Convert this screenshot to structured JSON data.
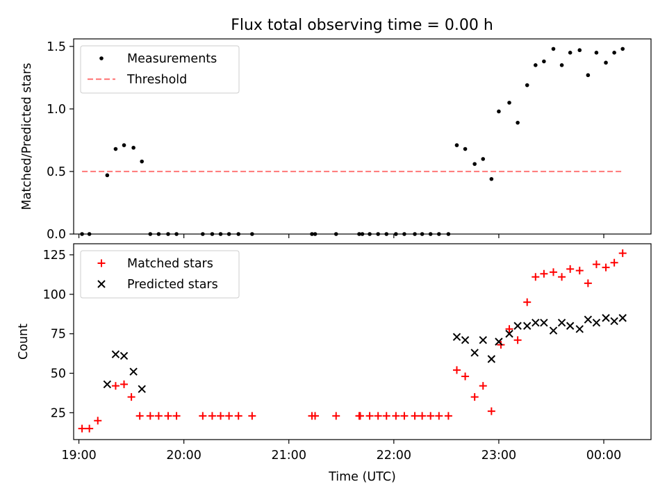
{
  "title": "Flux total observing time = 0.00 h",
  "chart_data": [
    {
      "type": "scatter",
      "ylabel": "Matched/Predicted stars",
      "xlim_hours": [
        18.95,
        24.45
      ],
      "ylim": [
        0,
        1.56
      ],
      "yticks": [
        0.0,
        0.5,
        1.0,
        1.5
      ],
      "ytick_labels": [
        "0.0",
        "0.5",
        "1.0",
        "1.5"
      ],
      "legend_position": "upper-left",
      "series": [
        {
          "name": "Measurements",
          "marker": "dot",
          "color": "#000000",
          "points": [
            [
              19.03,
              0.0
            ],
            [
              19.1,
              0.0
            ],
            [
              19.27,
              0.47
            ],
            [
              19.35,
              0.68
            ],
            [
              19.43,
              0.71
            ],
            [
              19.52,
              0.69
            ],
            [
              19.6,
              0.58
            ],
            [
              19.68,
              0.0
            ],
            [
              19.76,
              0.0
            ],
            [
              19.85,
              0.0
            ],
            [
              19.93,
              0.0
            ],
            [
              20.18,
              0.0
            ],
            [
              20.27,
              0.0
            ],
            [
              20.35,
              0.0
            ],
            [
              20.43,
              0.0
            ],
            [
              20.52,
              0.0
            ],
            [
              20.65,
              0.0
            ],
            [
              21.22,
              0.0
            ],
            [
              21.25,
              0.0
            ],
            [
              21.45,
              0.0
            ],
            [
              21.67,
              0.0
            ],
            [
              21.7,
              0.0
            ],
            [
              21.77,
              0.0
            ],
            [
              21.85,
              0.0
            ],
            [
              21.93,
              0.0
            ],
            [
              22.02,
              0.0
            ],
            [
              22.1,
              0.0
            ],
            [
              22.2,
              0.0
            ],
            [
              22.27,
              0.0
            ],
            [
              22.35,
              0.0
            ],
            [
              22.43,
              0.0
            ],
            [
              22.52,
              0.0
            ],
            [
              22.6,
              0.71
            ],
            [
              22.68,
              0.68
            ],
            [
              22.77,
              0.56
            ],
            [
              22.85,
              0.6
            ],
            [
              22.93,
              0.44
            ],
            [
              23.0,
              0.98
            ],
            [
              23.1,
              1.05
            ],
            [
              23.18,
              0.89
            ],
            [
              23.27,
              1.19
            ],
            [
              23.35,
              1.35
            ],
            [
              23.43,
              1.38
            ],
            [
              23.52,
              1.48
            ],
            [
              23.6,
              1.35
            ],
            [
              23.68,
              1.45
            ],
            [
              23.77,
              1.47
            ],
            [
              23.85,
              1.27
            ],
            [
              23.93,
              1.45
            ],
            [
              24.02,
              1.37
            ],
            [
              24.1,
              1.45
            ],
            [
              24.18,
              1.48
            ]
          ]
        },
        {
          "name": "Threshold",
          "style": "dashed",
          "color": "#ff7f7f",
          "x": [
            19.03,
            24.18
          ],
          "y": [
            0.5,
            0.5
          ]
        }
      ]
    },
    {
      "type": "scatter",
      "xlabel": "Time (UTC)",
      "ylabel": "Count",
      "xlim_hours": [
        18.95,
        24.45
      ],
      "ylim": [
        8,
        132
      ],
      "yticks": [
        25,
        50,
        75,
        100,
        125
      ],
      "ytick_labels": [
        "25",
        "50",
        "75",
        "100",
        "125"
      ],
      "xticks_hours": [
        19,
        20,
        21,
        22,
        23,
        24
      ],
      "xtick_labels": [
        "19:00",
        "20:00",
        "21:00",
        "22:00",
        "23:00",
        "00:00"
      ],
      "legend_position": "upper-left",
      "series": [
        {
          "name": "Matched stars",
          "marker": "plus",
          "color": "#ff0000",
          "points": [
            [
              19.03,
              15
            ],
            [
              19.1,
              15
            ],
            [
              19.18,
              20
            ],
            [
              19.35,
              42
            ],
            [
              19.43,
              43
            ],
            [
              19.5,
              35
            ],
            [
              19.58,
              23
            ],
            [
              19.68,
              23
            ],
            [
              19.76,
              23
            ],
            [
              19.85,
              23
            ],
            [
              19.93,
              23
            ],
            [
              20.18,
              23
            ],
            [
              20.27,
              23
            ],
            [
              20.35,
              23
            ],
            [
              20.43,
              23
            ],
            [
              20.52,
              23
            ],
            [
              20.65,
              23
            ],
            [
              21.22,
              23
            ],
            [
              21.25,
              23
            ],
            [
              21.45,
              23
            ],
            [
              21.67,
              23
            ],
            [
              21.68,
              23
            ],
            [
              21.77,
              23
            ],
            [
              21.85,
              23
            ],
            [
              21.93,
              23
            ],
            [
              22.02,
              23
            ],
            [
              22.1,
              23
            ],
            [
              22.2,
              23
            ],
            [
              22.27,
              23
            ],
            [
              22.35,
              23
            ],
            [
              22.43,
              23
            ],
            [
              22.52,
              23
            ],
            [
              22.6,
              52
            ],
            [
              22.68,
              48
            ],
            [
              22.77,
              35
            ],
            [
              22.85,
              42
            ],
            [
              22.93,
              26
            ],
            [
              23.02,
              68
            ],
            [
              23.1,
              78
            ],
            [
              23.18,
              71
            ],
            [
              23.27,
              95
            ],
            [
              23.35,
              111
            ],
            [
              23.43,
              113
            ],
            [
              23.52,
              114
            ],
            [
              23.6,
              111
            ],
            [
              23.68,
              116
            ],
            [
              23.77,
              115
            ],
            [
              23.85,
              107
            ],
            [
              23.93,
              119
            ],
            [
              24.02,
              117
            ],
            [
              24.1,
              120
            ],
            [
              24.18,
              126
            ]
          ]
        },
        {
          "name": "Predicted stars",
          "marker": "x",
          "color": "#000000",
          "points": [
            [
              19.27,
              43
            ],
            [
              19.35,
              62
            ],
            [
              19.43,
              61
            ],
            [
              19.52,
              51
            ],
            [
              19.6,
              40
            ],
            [
              22.6,
              73
            ],
            [
              22.68,
              71
            ],
            [
              22.77,
              63
            ],
            [
              22.85,
              71
            ],
            [
              22.93,
              59
            ],
            [
              23.0,
              70
            ],
            [
              23.1,
              75
            ],
            [
              23.18,
              80
            ],
            [
              23.27,
              80
            ],
            [
              23.35,
              82
            ],
            [
              23.43,
              82
            ],
            [
              23.52,
              77
            ],
            [
              23.6,
              82
            ],
            [
              23.68,
              80
            ],
            [
              23.77,
              78
            ],
            [
              23.85,
              84
            ],
            [
              23.93,
              82
            ],
            [
              24.02,
              85
            ],
            [
              24.1,
              83
            ],
            [
              24.18,
              85
            ]
          ]
        }
      ]
    }
  ]
}
